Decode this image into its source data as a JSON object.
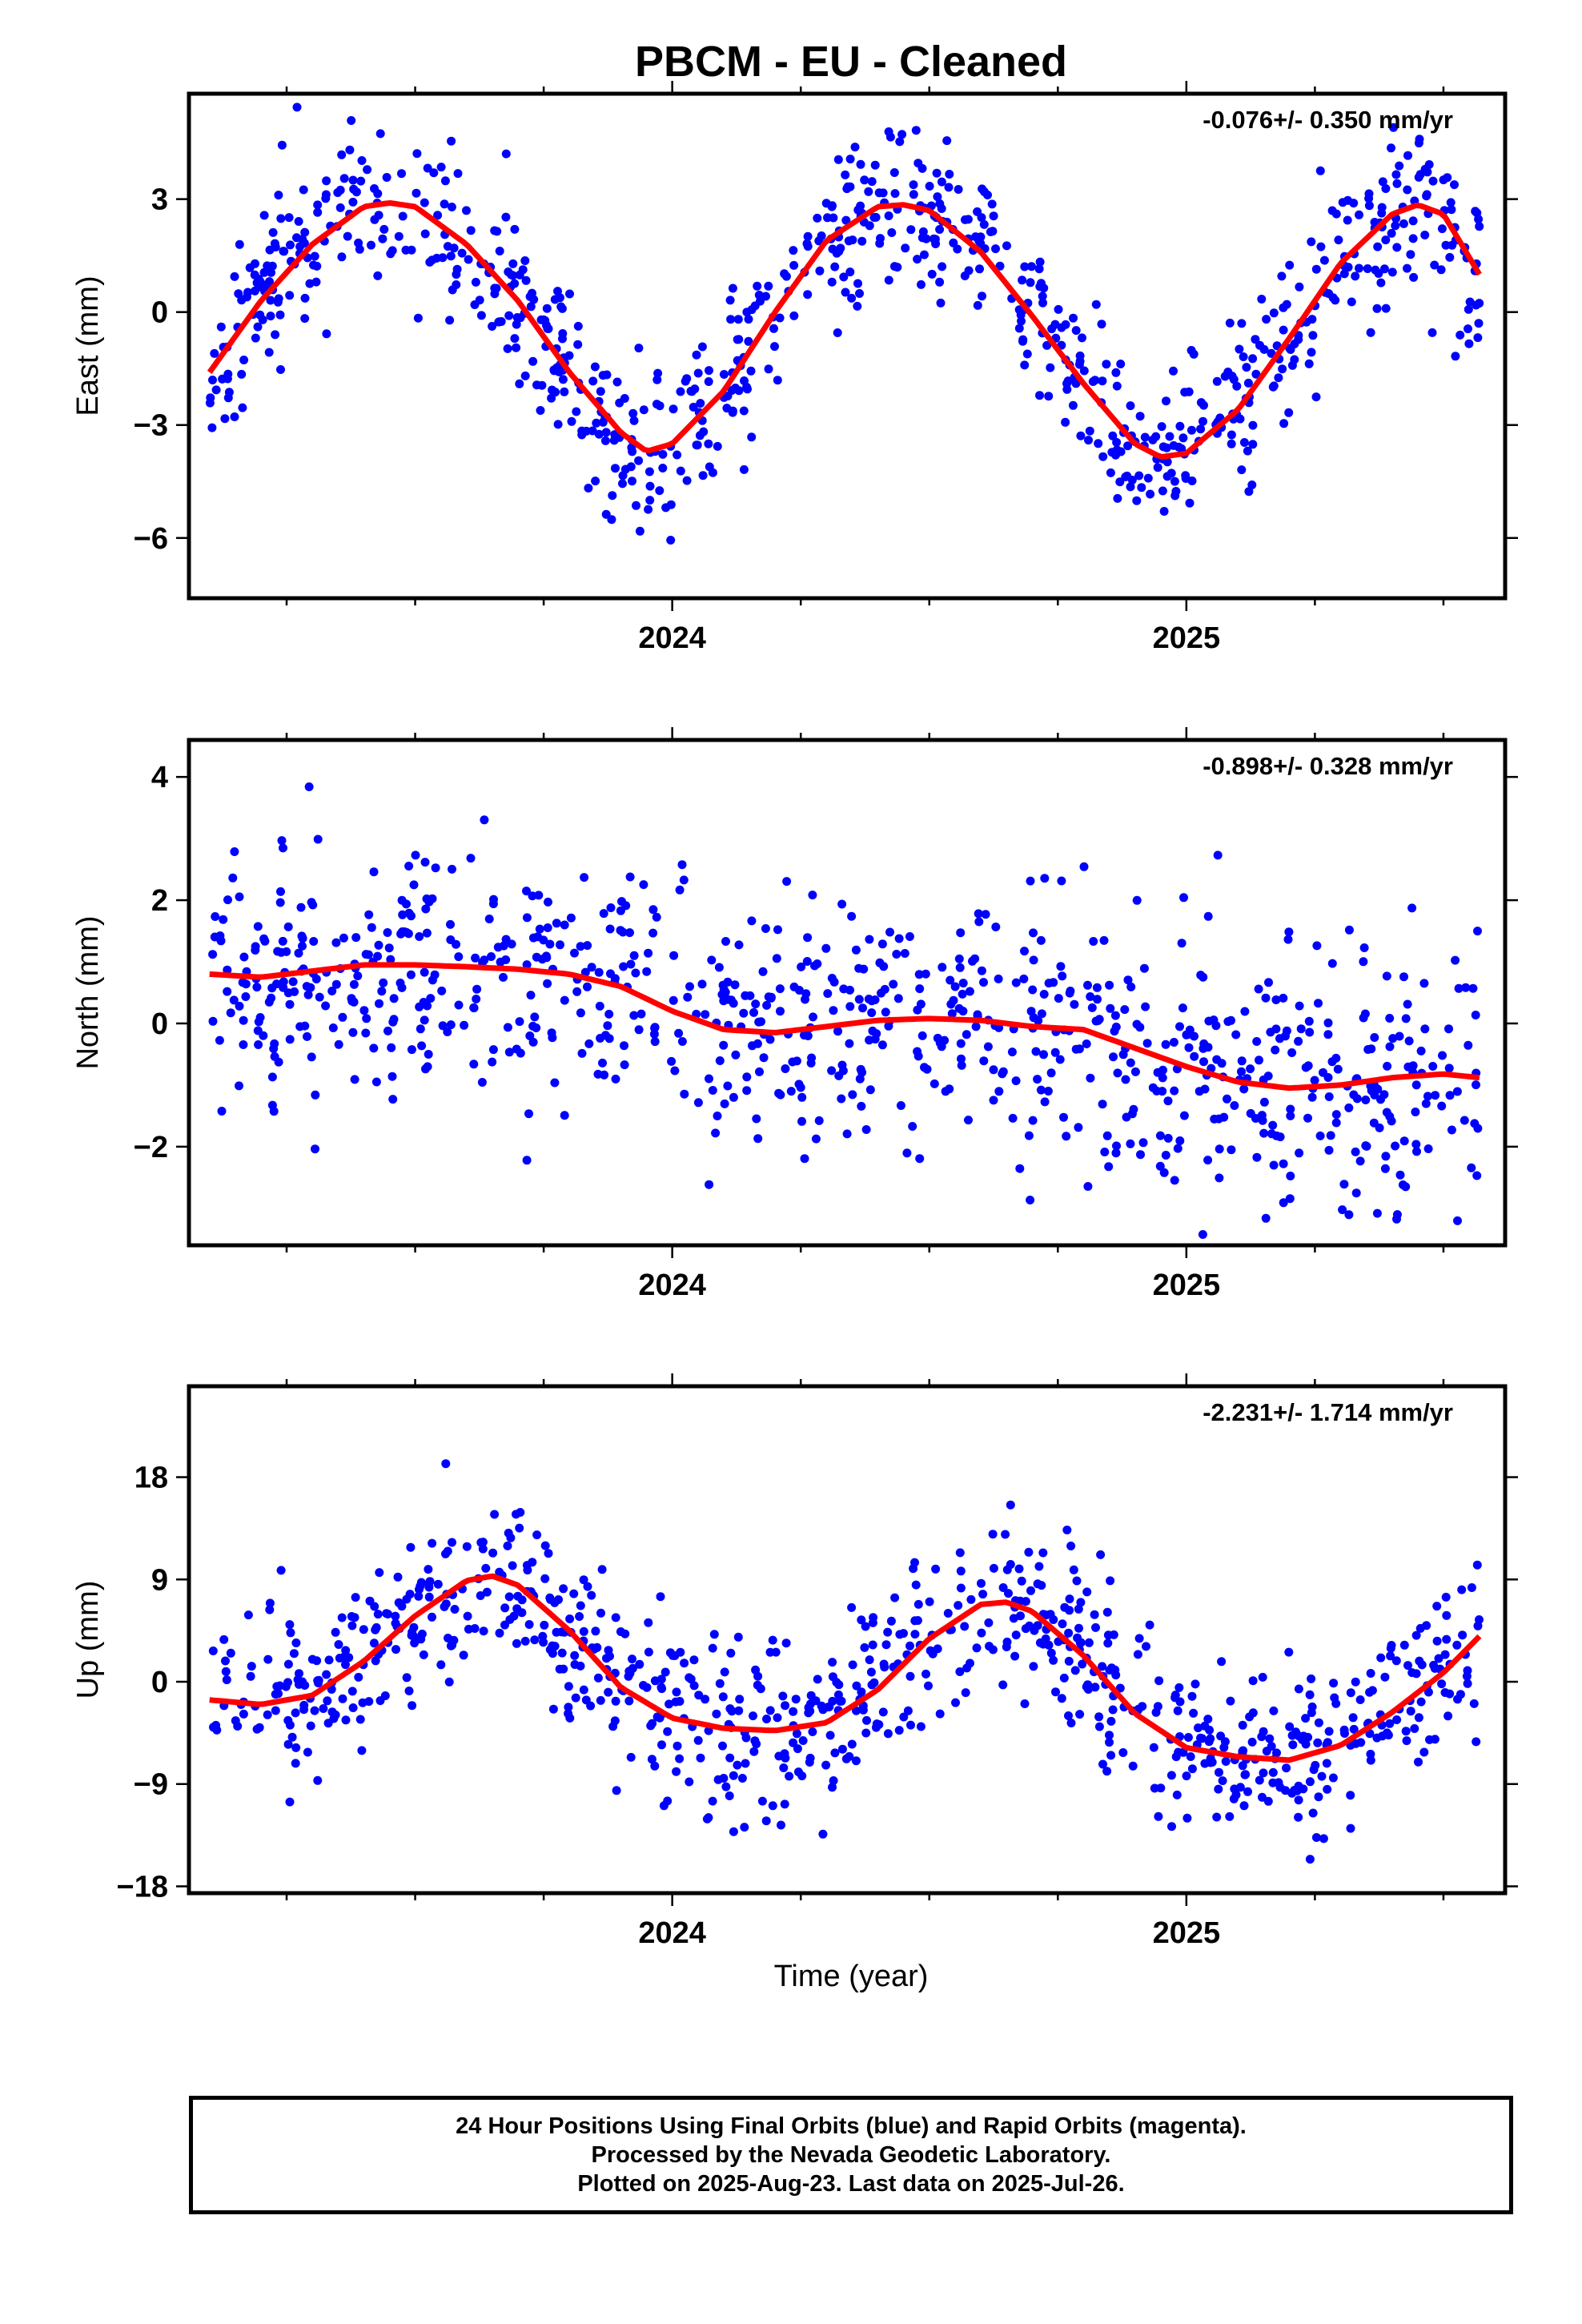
{
  "title": "PBCM  - EU - Cleaned",
  "xlabel": "Time (year)",
  "footer": {
    "line1": "24 Hour Positions Using Final Orbits (blue) and Rapid Orbits (magenta).",
    "line2": "Processed by the Nevada Geodetic Laboratory.",
    "line3": "Plotted on 2025-Aug-23. Last data on 2025-Jul-26."
  },
  "colors": {
    "points": "#0000ff",
    "fit": "#ff0000",
    "axes": "#000000"
  },
  "chart_data": [
    {
      "type": "scatter",
      "panel": "east",
      "ylabel": "East (mm)",
      "rate_label": "-0.076+/- 0.350 mm/yr",
      "xlim": [
        2023.06,
        2025.62
      ],
      "ylim": [
        -7.6,
        5.8
      ],
      "x_ticks": [
        2024,
        2025
      ],
      "x_tick_labels": [
        "2024",
        "2025"
      ],
      "y_ticks": [
        -6,
        -3,
        0,
        3
      ],
      "y_tick_labels": [
        "−6",
        "−3",
        "0",
        "3"
      ],
      "grid": false,
      "series": [
        {
          "kind": "points",
          "model": {
            "offset": -0.5,
            "amplitude": 3.35,
            "phase_year": 2023.45,
            "scatter_sd": 1.15,
            "count": 850,
            "seed": 11
          }
        },
        {
          "kind": "fit",
          "x": [
            2023.1,
            2023.2,
            2023.3,
            2023.4,
            2023.45,
            2023.5,
            2023.6,
            2023.7,
            2023.8,
            2023.9,
            2023.95,
            2024.0,
            2024.1,
            2024.2,
            2024.3,
            2024.4,
            2024.45,
            2024.5,
            2024.6,
            2024.7,
            2024.8,
            2024.9,
            2024.95,
            2025.0,
            2025.1,
            2025.2,
            2025.3,
            2025.4,
            2025.45,
            2025.5,
            2025.57
          ],
          "y": [
            -1.6,
            0.3,
            1.8,
            2.8,
            2.9,
            2.8,
            1.8,
            0.3,
            -1.6,
            -3.2,
            -3.7,
            -3.5,
            -2.1,
            0.0,
            1.9,
            2.8,
            2.85,
            2.7,
            1.6,
            -0.1,
            -1.9,
            -3.5,
            -3.85,
            -3.75,
            -2.6,
            -0.7,
            1.3,
            2.6,
            2.85,
            2.6,
            1.0
          ]
        }
      ]
    },
    {
      "type": "scatter",
      "panel": "north",
      "ylabel": "North (mm)",
      "rate_label": "-0.898+/- 0.328 mm/yr",
      "xlim": [
        2023.06,
        2025.62
      ],
      "ylim": [
        -3.6,
        4.6
      ],
      "x_ticks": [
        2024,
        2025
      ],
      "x_tick_labels": [
        "2024",
        "2025"
      ],
      "y_ticks": [
        -2,
        0,
        2,
        4
      ],
      "y_tick_labels": [
        "−2",
        "0",
        "2",
        "4"
      ],
      "grid": false,
      "series": [
        {
          "kind": "points",
          "model": {
            "offset": 0,
            "amplitude": 0,
            "phase_year": 2023.5,
            "scatter_sd": 1.05,
            "count": 850,
            "seed": 23
          }
        },
        {
          "kind": "fit",
          "x": [
            2023.1,
            2023.2,
            2023.3,
            2023.4,
            2023.5,
            2023.6,
            2023.7,
            2023.8,
            2023.9,
            2024.0,
            2024.1,
            2024.2,
            2024.3,
            2024.4,
            2024.5,
            2024.6,
            2024.7,
            2024.8,
            2024.9,
            2025.0,
            2025.1,
            2025.2,
            2025.3,
            2025.4,
            2025.5,
            2025.57
          ],
          "y": [
            0.8,
            0.75,
            0.85,
            0.95,
            0.95,
            0.92,
            0.88,
            0.8,
            0.6,
            0.2,
            -0.1,
            -0.15,
            -0.05,
            0.05,
            0.08,
            0.05,
            -0.05,
            -0.1,
            -0.4,
            -0.7,
            -0.95,
            -1.05,
            -1.0,
            -0.88,
            -0.82,
            -0.88
          ]
        }
      ]
    },
    {
      "type": "scatter",
      "panel": "up",
      "ylabel": "Up (mm)",
      "rate_label": "-2.231+/- 1.714 mm/yr",
      "xlim": [
        2023.06,
        2025.62
      ],
      "ylim": [
        -18.6,
        26
      ],
      "x_ticks": [
        2024,
        2025
      ],
      "x_tick_labels": [
        "2024",
        "2025"
      ],
      "y_ticks": [
        -18,
        -9,
        0,
        9,
        18
      ],
      "y_tick_labels": [
        "−18",
        "−9",
        "0",
        "9",
        "18"
      ],
      "grid": false,
      "series": [
        {
          "kind": "points",
          "model": {
            "offset": 0,
            "amplitude": 0,
            "phase_year": 2023.6,
            "scatter_sd": 3.8,
            "count": 850,
            "seed": 37
          }
        },
        {
          "kind": "fit",
          "x": [
            2023.1,
            2023.2,
            2023.3,
            2023.4,
            2023.5,
            2023.6,
            2023.65,
            2023.7,
            2023.8,
            2023.9,
            2024.0,
            2024.1,
            2024.2,
            2024.3,
            2024.4,
            2024.5,
            2024.6,
            2024.65,
            2024.7,
            2024.8,
            2024.9,
            2025.0,
            2025.1,
            2025.2,
            2025.3,
            2025.4,
            2025.5,
            2025.57
          ],
          "y": [
            -1.6,
            -2.0,
            -1.2,
            1.8,
            5.8,
            8.9,
            9.3,
            8.5,
            4.5,
            -0.5,
            -3.2,
            -4.1,
            -4.3,
            -3.6,
            -0.7,
            3.8,
            6.8,
            7.0,
            6.2,
            2.3,
            -2.8,
            -5.8,
            -6.6,
            -6.9,
            -5.6,
            -2.7,
            0.8,
            4.0
          ]
        }
      ]
    }
  ]
}
